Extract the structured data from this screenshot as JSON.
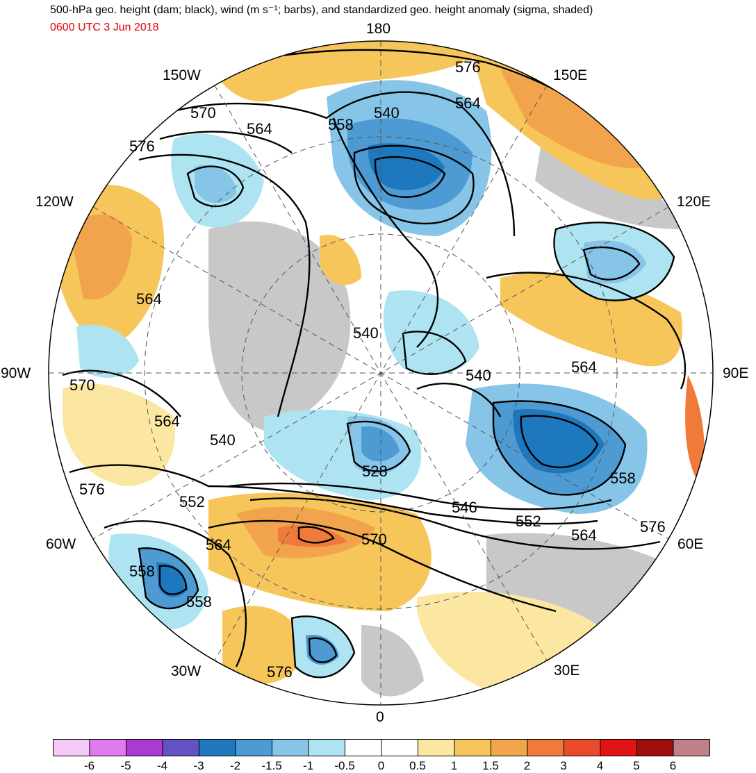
{
  "header": {
    "title": "500-hPa geo. height (dam; black), wind (m s⁻¹; barbs), and standardized geo. height anomaly (sigma, shaded)",
    "valid_time": "0600 UTC 3 Jun 2018"
  },
  "map": {
    "projection": "north polar stereographic",
    "longitude_labels": [
      "180",
      "150E",
      "120E",
      "90E",
      "60E",
      "30E",
      "0",
      "30W",
      "60W",
      "90W",
      "120W",
      "150W"
    ],
    "contour_labels": [
      "576",
      "564",
      "558",
      "540",
      "570",
      "564",
      "576",
      "564",
      "540",
      "540",
      "564",
      "570",
      "564",
      "540",
      "528",
      "546",
      "552",
      "564",
      "576",
      "558",
      "576",
      "552",
      "564",
      "570",
      "558",
      "558",
      "576"
    ]
  },
  "colorbar": {
    "labels": [
      "-6",
      "-5",
      "-4",
      "-3",
      "-2",
      "-1.5",
      "-1",
      "-0.5",
      "0",
      "0.5",
      "1",
      "1.5",
      "2",
      "3",
      "4",
      "5",
      "6"
    ],
    "colors": [
      "#f6c8f6",
      "#de7cee",
      "#a93ad2",
      "#6252c4",
      "#1e78be",
      "#4d9bd2",
      "#86c5e8",
      "#aee4f2",
      "#ffffff",
      "#ffffff",
      "#fbe7a1",
      "#f7c65a",
      "#f2a44d",
      "#ef7a3a",
      "#ea4a2c",
      "#e01416",
      "#9f0f0f",
      "#c0808a"
    ]
  },
  "colors": {
    "title_text": "#000000",
    "time_text": "#e00000",
    "land_gray": "#c8c8c8"
  }
}
